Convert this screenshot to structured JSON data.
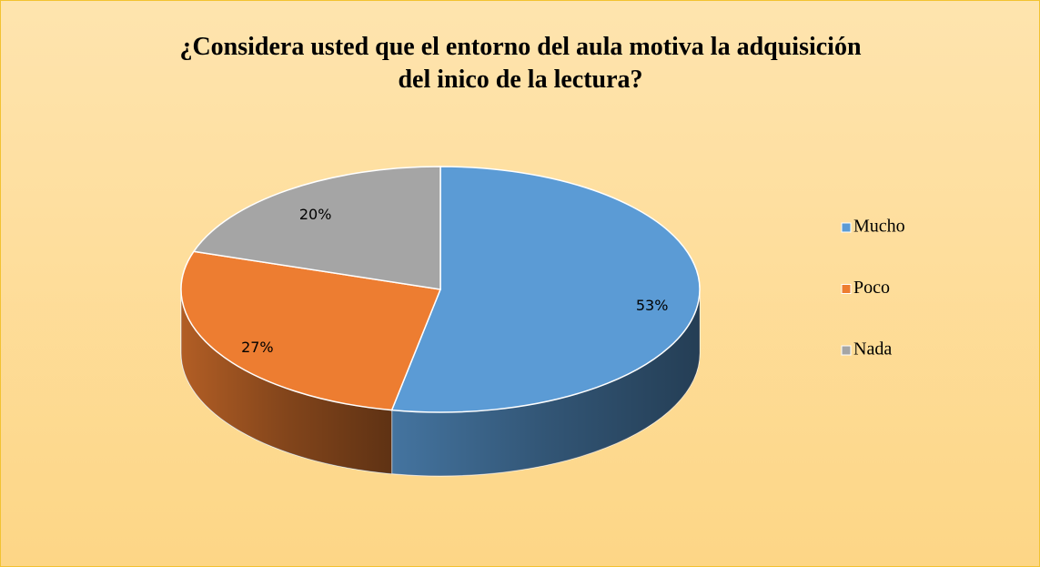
{
  "chart_data": {
    "type": "pie",
    "title": [
      "¿Considera usted que el entorno del aula motiva la adquisición",
      "del inico de la lectura?"
    ],
    "categories": [
      "Mucho",
      "Poco",
      "Nada"
    ],
    "values": [
      53,
      27,
      20
    ],
    "value_labels": [
      "53%",
      "27%",
      "20%"
    ],
    "colors": [
      "#5b9bd5",
      "#ed7d31",
      "#a5a5a5"
    ],
    "legend": "right"
  }
}
